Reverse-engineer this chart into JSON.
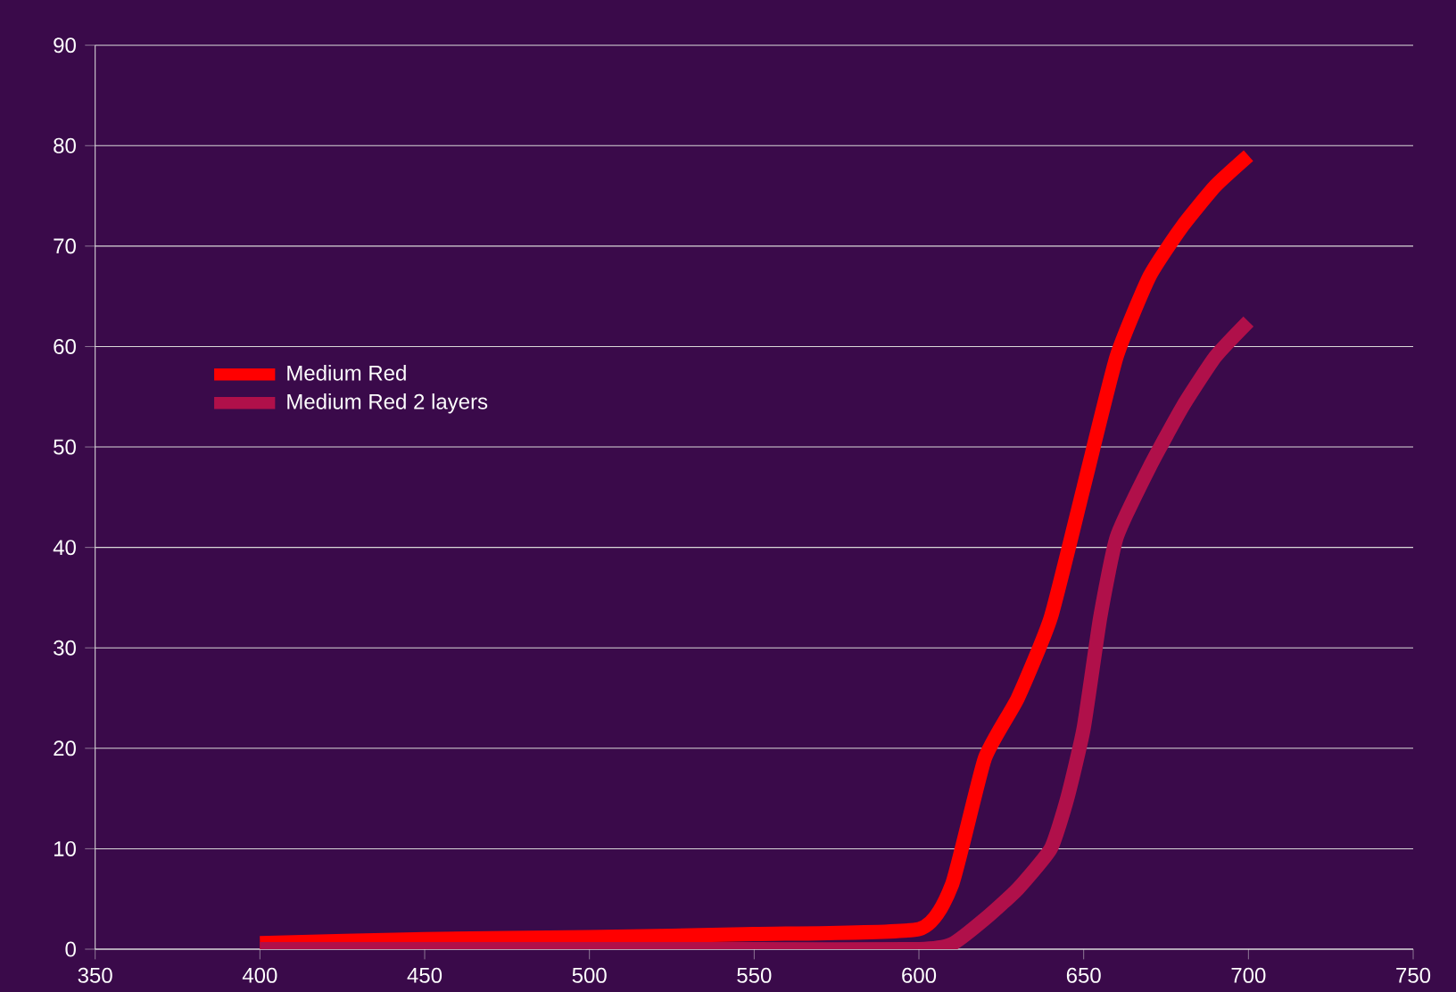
{
  "chart_data": {
    "type": "line",
    "series": [
      {
        "name": "Medium Red",
        "color": "#ff0000",
        "x": [
          400,
          450,
          500,
          550,
          600,
          610,
          620,
          630,
          640,
          650,
          660,
          670,
          680,
          690,
          700
        ],
        "values": [
          0.6,
          1,
          1.2,
          1.5,
          2,
          6.4,
          19,
          25,
          33,
          46,
          59,
          67,
          72,
          76,
          79
        ]
      },
      {
        "name": "Medium Red 2 layers",
        "color": "#b0104a",
        "x": [
          400,
          450,
          500,
          550,
          600,
          610,
          620,
          630,
          640,
          645,
          650,
          655,
          660,
          670,
          680,
          690,
          700
        ],
        "values": [
          0,
          0,
          0,
          0,
          0,
          0.5,
          3,
          6,
          10,
          15,
          22,
          33,
          41,
          48,
          54,
          59,
          62.5
        ]
      }
    ],
    "xlim": [
      350,
      750
    ],
    "ylim": [
      0,
      90
    ],
    "xticks": [
      350,
      400,
      450,
      500,
      550,
      600,
      650,
      700,
      750
    ],
    "yticks": [
      0,
      10,
      20,
      30,
      40,
      50,
      60,
      70,
      80,
      90
    ],
    "grid": "y",
    "legend": "center left"
  }
}
